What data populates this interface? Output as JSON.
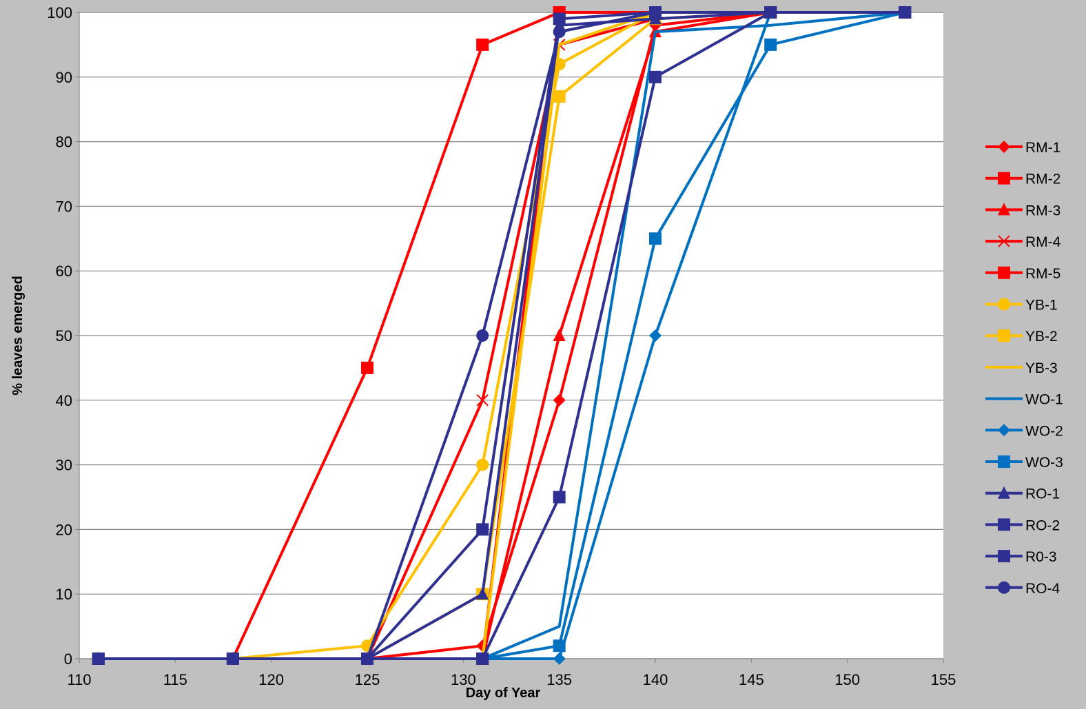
{
  "chart_data": {
    "type": "line",
    "title": "",
    "xlabel": "Day of Year",
    "ylabel": "% leaves emerged",
    "xlim": [
      110,
      155
    ],
    "ylim": [
      0,
      100
    ],
    "xticks": [
      110,
      115,
      120,
      125,
      130,
      135,
      140,
      145,
      150,
      155
    ],
    "yticks": [
      0,
      10,
      20,
      30,
      40,
      50,
      60,
      70,
      80,
      90,
      100
    ],
    "grid": "horizontal",
    "legend_position": "right",
    "series": [
      {
        "name": "RM-1",
        "color": "#ff0000",
        "marker": "diamond",
        "x": [
          111,
          118,
          125,
          131,
          135,
          140,
          146,
          153
        ],
        "y": [
          0,
          0,
          0,
          2,
          40,
          98,
          100,
          100
        ]
      },
      {
        "name": "RM-2",
        "color": "#ff0000",
        "marker": "square",
        "x": [
          111,
          118,
          125,
          131,
          135,
          140,
          146,
          153
        ],
        "y": [
          0,
          0,
          0,
          0,
          100,
          100,
          100,
          100
        ]
      },
      {
        "name": "RM-3",
        "color": "#ff0000",
        "marker": "triangle",
        "x": [
          111,
          118,
          125,
          131,
          135,
          140,
          146,
          153
        ],
        "y": [
          0,
          0,
          0,
          0,
          50,
          97,
          100,
          100
        ]
      },
      {
        "name": "RM-4",
        "color": "#ff0000",
        "marker": "x",
        "x": [
          111,
          118,
          125,
          131,
          135,
          140,
          146,
          153
        ],
        "y": [
          0,
          0,
          0,
          40,
          95,
          99,
          100,
          100
        ]
      },
      {
        "name": "RM-5",
        "color": "#ff0000",
        "marker": "square",
        "x": [
          111,
          118,
          125,
          131,
          135,
          140,
          146,
          153
        ],
        "y": [
          0,
          0,
          45,
          95,
          100,
          100,
          100,
          100
        ]
      },
      {
        "name": "YB-1",
        "color": "#ffc000",
        "marker": "circle",
        "x": [
          111,
          118,
          125,
          131,
          135,
          140,
          146,
          153
        ],
        "y": [
          0,
          0,
          2,
          30,
          92,
          100,
          100,
          100
        ]
      },
      {
        "name": "YB-2",
        "color": "#ffc000",
        "marker": "square",
        "x": [
          111,
          118,
          125,
          131,
          135,
          140,
          146,
          153
        ],
        "y": [
          0,
          0,
          0,
          10,
          87,
          99,
          100,
          100
        ]
      },
      {
        "name": "YB-3",
        "color": "#ffc000",
        "marker": "none",
        "x": [
          111,
          118,
          125,
          131,
          135,
          140,
          146,
          153
        ],
        "y": [
          0,
          0,
          0,
          0,
          95,
          100,
          100,
          100
        ]
      },
      {
        "name": "WO-1",
        "color": "#0070c0",
        "marker": "none",
        "x": [
          111,
          118,
          125,
          131,
          135,
          140,
          146,
          153
        ],
        "y": [
          0,
          0,
          0,
          0,
          5,
          97,
          98,
          100
        ]
      },
      {
        "name": "WO-2",
        "color": "#0070c0",
        "marker": "diamond",
        "x": [
          111,
          118,
          125,
          131,
          135,
          140,
          146,
          153
        ],
        "y": [
          0,
          0,
          0,
          0,
          0,
          50,
          100,
          100
        ]
      },
      {
        "name": "WO-3",
        "color": "#0070c0",
        "marker": "square",
        "x": [
          111,
          118,
          125,
          131,
          135,
          140,
          146,
          153
        ],
        "y": [
          0,
          0,
          0,
          0,
          2,
          65,
          95,
          100
        ]
      },
      {
        "name": "RO-1",
        "color": "#2e3192",
        "marker": "triangle",
        "x": [
          111,
          118,
          125,
          131,
          135,
          140,
          146,
          153
        ],
        "y": [
          0,
          0,
          0,
          10,
          98,
          99,
          100,
          100
        ]
      },
      {
        "name": "RO-2",
        "color": "#2e3192",
        "marker": "square",
        "x": [
          111,
          118,
          125,
          131,
          135,
          140,
          146,
          153
        ],
        "y": [
          0,
          0,
          0,
          20,
          99,
          100,
          100,
          100
        ]
      },
      {
        "name": "R0-3",
        "color": "#2e3192",
        "marker": "square",
        "x": [
          111,
          118,
          125,
          131,
          135,
          140,
          146,
          153
        ],
        "y": [
          0,
          0,
          0,
          0,
          25,
          90,
          100,
          100
        ]
      },
      {
        "name": "RO-4",
        "color": "#2e3192",
        "marker": "circle",
        "x": [
          111,
          118,
          125,
          131,
          135,
          140,
          146,
          153
        ],
        "y": [
          0,
          0,
          0,
          50,
          97,
          100,
          100,
          100
        ]
      }
    ]
  }
}
